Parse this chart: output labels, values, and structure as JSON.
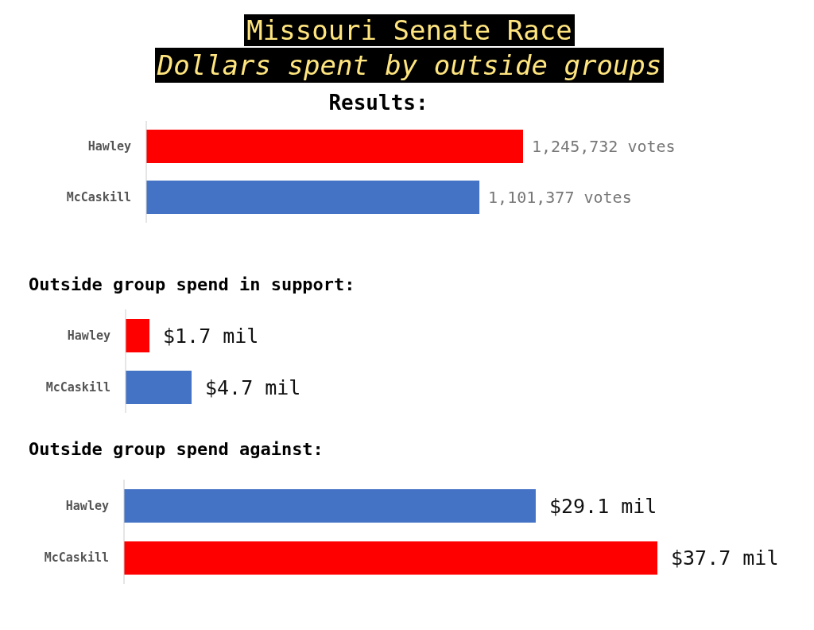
{
  "chart_data": [
    {
      "type": "other",
      "title": "Missouri Senate Race",
      "subtitle": "Dollars spent by outside groups"
    },
    {
      "type": "bar",
      "orientation": "horizontal",
      "title": "Results:",
      "categories": [
        "Hawley",
        "McCaskill"
      ],
      "values": [
        1245732,
        1101377
      ],
      "colors": [
        "#ff0000",
        "#4472c4"
      ],
      "value_labels": [
        "1,245,732 votes",
        "1,101,377 votes"
      ]
    },
    {
      "type": "bar",
      "orientation": "horizontal",
      "title": "Outside group spend in support:",
      "categories": [
        "Hawley",
        "McCaskill"
      ],
      "values": [
        1.7,
        4.7
      ],
      "colors": [
        "#ff0000",
        "#4472c4"
      ],
      "value_labels": [
        "$1.7 mil",
        "$4.7 mil"
      ]
    },
    {
      "type": "bar",
      "orientation": "horizontal",
      "title": "Outside group spend against:",
      "categories": [
        "Hawley",
        "McCaskill"
      ],
      "values": [
        29.1,
        37.7
      ],
      "colors": [
        "#4472c4",
        "#ff0000"
      ],
      "value_labels": [
        "$29.1 mil",
        "$37.7 mil"
      ]
    }
  ]
}
